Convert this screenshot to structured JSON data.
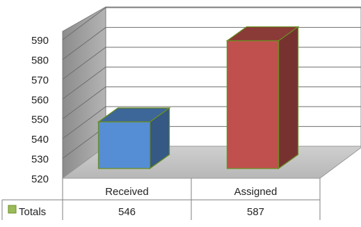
{
  "chart_data": {
    "type": "bar",
    "categories": [
      "Received",
      "Assigned"
    ],
    "series": [
      {
        "name": "Totals",
        "values": [
          546,
          587
        ]
      }
    ],
    "ylim": [
      520,
      590
    ],
    "yticks": [
      520,
      530,
      540,
      550,
      560,
      570,
      580,
      590
    ],
    "grid": true,
    "legend": "data-table",
    "data_table": true,
    "bar_colors": [
      "#558ed5",
      "#c0504d"
    ],
    "legend_key_color": "#9bbb59"
  }
}
